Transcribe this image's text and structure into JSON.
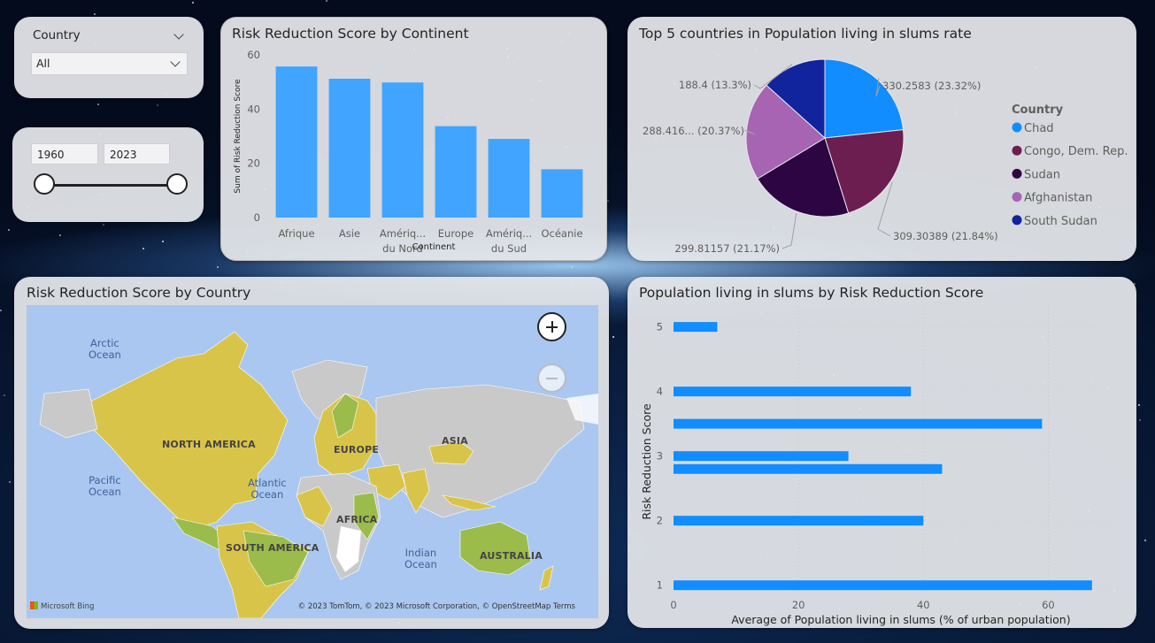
{
  "slicer_country": {
    "label": "Country",
    "value": "All"
  },
  "slicer_year": {
    "start": "1960",
    "end": "2023",
    "min": 1960,
    "max": 2023
  },
  "bar_continent": {
    "title": "Risk Reduction Score by Continent",
    "colors": {
      "bar": "#41a4ff"
    }
  },
  "pie_slums": {
    "title": "Top 5 countries in Population living in slums rate",
    "legend_title": "Country"
  },
  "map": {
    "title": "Risk Reduction Score by Country",
    "ocean_labels": [
      "Arctic\nOcean",
      "Pacific\nOcean",
      "Atlantic\nOcean",
      "Indian\nOcean"
    ],
    "region_labels": [
      "NORTH AMERICA",
      "EUROPE",
      "ASIA",
      "AFRICA",
      "SOUTH AMERICA",
      "AUSTRALIA"
    ],
    "attribution": "© 2023 TomTom, © 2023 Microsoft Corporation, © OpenStreetMap  Terms",
    "bing": "Microsoft Bing",
    "colors": {
      "ocean": "#a9c7f0",
      "land": "#c9c9c9",
      "highlight": "#d9c44a",
      "green": "#9bbc4a"
    }
  },
  "hbar_slums": {
    "title": "Population living in slums by Risk Reduction Score",
    "colors": {
      "bar": "#118dff"
    }
  },
  "chart_data": [
    {
      "type": "bar",
      "title": "Risk Reduction Score by Continent",
      "xlabel": "Continent",
      "ylabel": "Sum of Risk Reduction Score",
      "categories": [
        "Afrique",
        "Asie",
        "Amériq... du Nord",
        "Europe",
        "Amériq... du Sud",
        "Océanie"
      ],
      "values": [
        55.7,
        51.2,
        49.8,
        33.7,
        29.0,
        17.8
      ],
      "ylim": [
        0,
        60
      ],
      "yticks": [
        0,
        20,
        40,
        60
      ],
      "grid": false
    },
    {
      "type": "pie",
      "title": "Top 5 countries in Population living in slums rate",
      "legend_title": "Country",
      "legend_position": "right",
      "slices": [
        {
          "name": "Chad",
          "value": 330.2583,
          "label": "330.2583 (23.32%)",
          "color": "#118dff"
        },
        {
          "name": "Congo, Dem. Rep.",
          "value": 309.30389,
          "label": "309.30389 (21.84%)",
          "color": "#6c1e51"
        },
        {
          "name": "Sudan",
          "value": 299.81157,
          "label": "299.81157 (21.17%)",
          "color": "#2c0542"
        },
        {
          "name": "Afghanistan",
          "value": 288.416,
          "label": "288.416... (20.37%)",
          "color": "#a664b3"
        },
        {
          "name": "South Sudan",
          "value": 188.4,
          "label": "188.4 (13.3%)",
          "color": "#12239e"
        }
      ]
    },
    {
      "type": "bar",
      "orientation": "horizontal",
      "title": "Population living in slums by Risk Reduction Score",
      "xlabel": "Average of Population living in slums (% of urban population)",
      "ylabel": "Risk Reduction Score",
      "y": [
        5,
        4,
        3.5,
        3,
        2.8,
        2,
        1
      ],
      "values": [
        7,
        38,
        59,
        28,
        43,
        40,
        67
      ],
      "xlim": [
        0,
        70
      ],
      "xticks": [
        0,
        20,
        40,
        60
      ],
      "yticks": [
        1,
        2,
        3,
        4,
        5
      ],
      "ylim": [
        0.9,
        5.2
      ]
    }
  ]
}
